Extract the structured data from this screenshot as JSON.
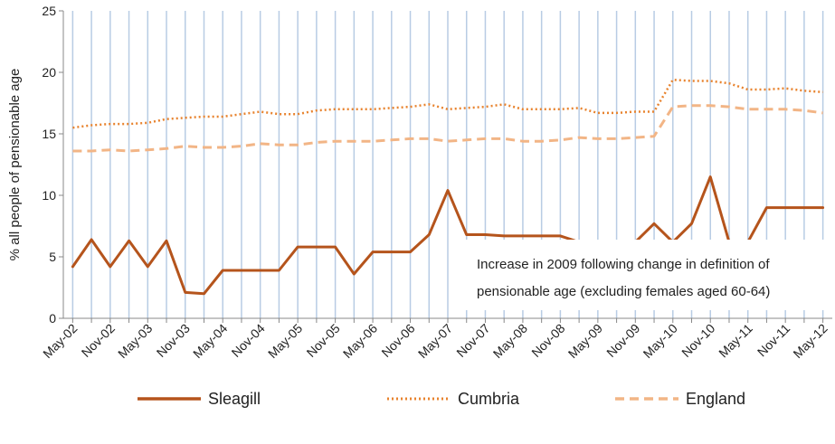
{
  "chart_data": {
    "type": "line",
    "title": "",
    "xlabel": "",
    "ylabel": "% all people of pensionable age",
    "ylim": [
      0,
      25
    ],
    "y_ticks": [
      0,
      5,
      10,
      15,
      20,
      25
    ],
    "x_tick_labels": [
      "May-02",
      "Nov-02",
      "May-03",
      "Nov-03",
      "May-04",
      "Nov-04",
      "May-05",
      "Nov-05",
      "May-06",
      "Nov-06",
      "May-07",
      "Nov-07",
      "May-08",
      "Nov-08",
      "May-09",
      "Nov-09",
      "May-10",
      "Nov-10",
      "May-11",
      "Nov-11",
      "May-12"
    ],
    "x": [
      "May-02",
      "Aug-02",
      "Nov-02",
      "Feb-03",
      "May-03",
      "Aug-03",
      "Nov-03",
      "Feb-04",
      "May-04",
      "Aug-04",
      "Nov-04",
      "Feb-05",
      "May-05",
      "Aug-05",
      "Nov-05",
      "Feb-06",
      "May-06",
      "Aug-06",
      "Nov-06",
      "Feb-07",
      "May-07",
      "Aug-07",
      "Nov-07",
      "Feb-08",
      "May-08",
      "Aug-08",
      "Nov-08",
      "Feb-09",
      "May-09",
      "Aug-09",
      "Nov-09",
      "Feb-10",
      "May-10",
      "Aug-10",
      "Nov-10",
      "Feb-11",
      "May-11",
      "Aug-11",
      "Nov-11",
      "Feb-12",
      "May-12"
    ],
    "grid": "vertical",
    "legend_position": "bottom",
    "series": [
      {
        "name": "Sleagill",
        "color": "#b5541c",
        "style": "solid",
        "values": [
          4.2,
          6.4,
          4.2,
          6.3,
          4.2,
          6.3,
          2.1,
          2.0,
          3.9,
          3.9,
          3.9,
          3.9,
          5.8,
          5.8,
          5.8,
          3.6,
          5.4,
          5.4,
          5.4,
          6.8,
          10.4,
          6.8,
          6.8,
          6.7,
          6.7,
          6.7,
          6.7,
          6.2,
          6.2,
          6.2,
          6.2,
          7.7,
          6.2,
          7.7,
          11.5,
          6.2,
          6.2,
          9.0,
          9.0,
          9.0,
          9.0
        ]
      },
      {
        "name": "Cumbria",
        "color": "#e8832e",
        "style": "dotted",
        "values": [
          15.5,
          15.7,
          15.8,
          15.8,
          15.9,
          16.2,
          16.3,
          16.4,
          16.4,
          16.6,
          16.8,
          16.6,
          16.6,
          16.9,
          17.0,
          17.0,
          17.0,
          17.1,
          17.2,
          17.4,
          17.0,
          17.1,
          17.2,
          17.4,
          17.0,
          17.0,
          17.0,
          17.1,
          16.7,
          16.7,
          16.8,
          16.8,
          19.4,
          19.3,
          19.3,
          19.1,
          18.6,
          18.6,
          18.7,
          18.5,
          18.4
        ]
      },
      {
        "name": "England",
        "color": "#f2b586",
        "style": "dashed",
        "values": [
          13.6,
          13.6,
          13.7,
          13.6,
          13.7,
          13.8,
          14.0,
          13.9,
          13.9,
          14.0,
          14.2,
          14.1,
          14.1,
          14.3,
          14.4,
          14.4,
          14.4,
          14.5,
          14.6,
          14.6,
          14.4,
          14.5,
          14.6,
          14.6,
          14.4,
          14.4,
          14.5,
          14.7,
          14.6,
          14.6,
          14.7,
          14.8,
          17.2,
          17.3,
          17.3,
          17.2,
          17.0,
          17.0,
          17.0,
          16.9,
          16.7
        ]
      }
    ],
    "annotation": {
      "lines": [
        "Increase in 2009 following change in definition of",
        "pensionable age (excluding females aged 60-64)"
      ]
    }
  }
}
